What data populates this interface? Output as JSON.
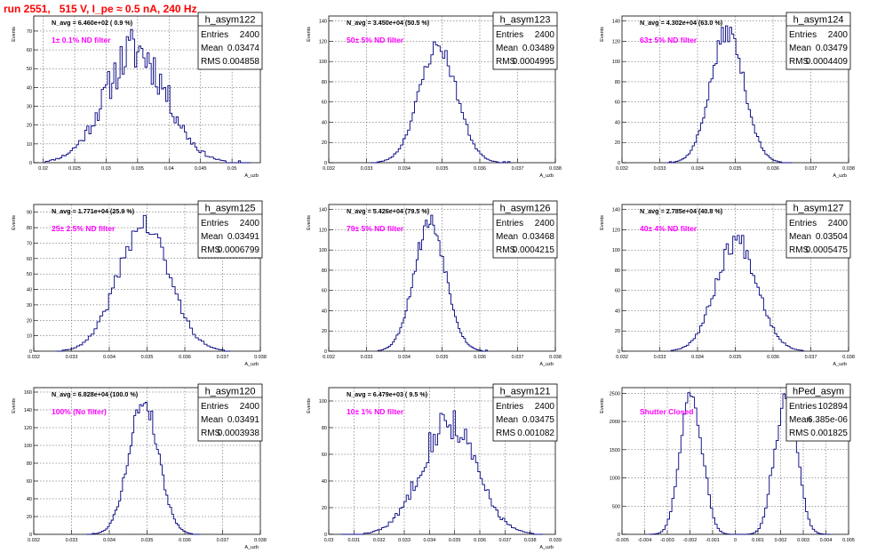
{
  "page": {
    "title": "run 2551,   515 V, I_pe ≈ 0.5 nA, 240 Hz",
    "colors": {
      "title": "#ff0000",
      "histogram": "#000080",
      "annotation": "#ff00ff"
    }
  },
  "chart_data": [
    {
      "type": "histogram",
      "name": "h_asym122",
      "navg": "N_avg = 6.460e+02 ( 0.9 %)",
      "filter": "1± 0.1% ND filter",
      "stats": {
        "entries": "2400",
        "mean": "0.03474",
        "rms": "0.004858"
      },
      "xlabel": "A_uzb",
      "ylabel": "Events",
      "xlim": [
        0.0185,
        0.0545
      ],
      "ylim": [
        0,
        78
      ],
      "xticks": [
        0.02,
        0.025,
        0.03,
        0.035,
        0.04,
        0.045,
        0.05
      ],
      "yticks": [
        0,
        10,
        20,
        30,
        40,
        50,
        60,
        70
      ],
      "gen": {
        "kind": "gauss",
        "mean": 0.03474,
        "sigma": 0.004858,
        "peak": 60,
        "noise": 0.22,
        "range": [
          0.02,
          0.053
        ],
        "bins": 100,
        "seed": 11
      }
    },
    {
      "type": "histogram",
      "name": "h_asym123",
      "navg": "N_avg = 3.450e+04 (50.5 %)",
      "filter": "50± 5% ND filter",
      "stats": {
        "entries": "2400",
        "mean": "0.03489",
        "rms": "0.0004995"
      },
      "xlabel": "A_uzb",
      "ylabel": "Events",
      "xlim": [
        0.032,
        0.038
      ],
      "ylim": [
        0,
        145
      ],
      "xticks": [
        0.032,
        0.033,
        0.034,
        0.035,
        0.036,
        0.037,
        0.038
      ],
      "yticks": [
        0,
        20,
        40,
        60,
        80,
        100,
        120,
        140
      ],
      "gen": {
        "kind": "gauss",
        "mean": 0.03489,
        "sigma": 0.0004995,
        "peak": 115,
        "noise": 0.08,
        "range": [
          0.0331,
          0.0368
        ],
        "bins": 60,
        "seed": 23
      }
    },
    {
      "type": "histogram",
      "name": "h_asym124",
      "navg": "N_avg = 4.302e+04 (63.0 %)",
      "filter": "63± 5% ND filter",
      "stats": {
        "entries": "2400",
        "mean": "0.03479",
        "rms": "0.0004409"
      },
      "xlabel": "A_uzb",
      "ylabel": "Events",
      "xlim": [
        0.032,
        0.038
      ],
      "ylim": [
        0,
        145
      ],
      "xticks": [
        0.032,
        0.033,
        0.034,
        0.035,
        0.036,
        0.037,
        0.038
      ],
      "yticks": [
        0,
        20,
        40,
        60,
        80,
        100,
        120,
        140
      ],
      "gen": {
        "kind": "gauss",
        "mean": 0.03479,
        "sigma": 0.0004409,
        "peak": 130,
        "noise": 0.08,
        "range": [
          0.0332,
          0.0365
        ],
        "bins": 60,
        "seed": 37
      }
    },
    {
      "type": "histogram",
      "name": "h_asym125",
      "navg": "N_avg = 1.771e+04 (25.9 %)",
      "filter": "25± 2.5% ND filter",
      "stats": {
        "entries": "2400",
        "mean": "0.03491",
        "rms": "0.0006799"
      },
      "xlabel": "A_uzb",
      "ylabel": "Events",
      "xlim": [
        0.032,
        0.038
      ],
      "ylim": [
        0,
        95
      ],
      "xticks": [
        0.032,
        0.033,
        0.034,
        0.035,
        0.036,
        0.037,
        0.038
      ],
      "yticks": [
        0,
        10,
        20,
        30,
        40,
        50,
        60,
        70,
        80,
        90
      ],
      "gen": {
        "kind": "gauss",
        "mean": 0.03491,
        "sigma": 0.0006799,
        "peak": 82,
        "noise": 0.1,
        "range": [
          0.0326,
          0.0372
        ],
        "bins": 60,
        "seed": 41
      }
    },
    {
      "type": "histogram",
      "name": "h_asym126",
      "navg": "N_avg = 5.426e+04 (79.5 %)",
      "filter": "79± 5% ND filter",
      "stats": {
        "entries": "2400",
        "mean": "0.03468",
        "rms": "0.0004215"
      },
      "xlabel": "A_uzb",
      "ylabel": "Events",
      "xlim": [
        0.032,
        0.038
      ],
      "ylim": [
        0,
        145
      ],
      "xticks": [
        0.032,
        0.033,
        0.034,
        0.035,
        0.036,
        0.037,
        0.038
      ],
      "yticks": [
        0,
        20,
        40,
        60,
        80,
        100,
        120,
        140
      ],
      "gen": {
        "kind": "gauss",
        "mean": 0.03468,
        "sigma": 0.0004215,
        "peak": 128,
        "noise": 0.08,
        "range": [
          0.0333,
          0.0362
        ],
        "bins": 60,
        "seed": 53
      }
    },
    {
      "type": "histogram",
      "name": "h_asym127",
      "navg": "N_avg = 2.785e+04 (40.8 %)",
      "filter": "40± 4% ND filter",
      "stats": {
        "entries": "2400",
        "mean": "0.03504",
        "rms": "0.0005475"
      },
      "xlabel": "A_uzb",
      "ylabel": "Events",
      "xlim": [
        0.032,
        0.038
      ],
      "ylim": [
        0,
        145
      ],
      "xticks": [
        0.032,
        0.033,
        0.034,
        0.035,
        0.036,
        0.037,
        0.038
      ],
      "yticks": [
        0,
        20,
        40,
        60,
        80,
        100,
        120,
        140
      ],
      "gen": {
        "kind": "gauss",
        "mean": 0.03504,
        "sigma": 0.0005475,
        "peak": 110,
        "noise": 0.1,
        "range": [
          0.0333,
          0.0368
        ],
        "bins": 60,
        "seed": 67
      }
    },
    {
      "type": "histogram",
      "name": "h_asym120",
      "navg": "N_avg = 6.828e+04 (100.0 %)",
      "filter": "100% (No filter)",
      "stats": {
        "entries": "2400",
        "mean": "0.03491",
        "rms": "0.0003938"
      },
      "xlabel": "A_uzb",
      "ylabel": "Events",
      "xlim": [
        0.032,
        0.038
      ],
      "ylim": [
        0,
        165
      ],
      "xticks": [
        0.032,
        0.033,
        0.034,
        0.035,
        0.036,
        0.037,
        0.038
      ],
      "yticks": [
        0,
        20,
        40,
        60,
        80,
        100,
        120,
        140,
        160
      ],
      "gen": {
        "kind": "gauss",
        "mean": 0.03491,
        "sigma": 0.0003938,
        "peak": 150,
        "noise": 0.08,
        "range": [
          0.0334,
          0.0364
        ],
        "bins": 60,
        "seed": 79
      }
    },
    {
      "type": "histogram",
      "name": "h_asym121",
      "navg": "N_avg = 6.479e+03 ( 9.5 %)",
      "filter": "10± 1% ND filter",
      "stats": {
        "entries": "2400",
        "mean": "0.03475",
        "rms": "0.001082"
      },
      "xlabel": "A_uzb",
      "ylabel": "Events",
      "xlim": [
        0.03,
        0.039
      ],
      "ylim": [
        0,
        110
      ],
      "xticks": [
        0.03,
        0.031,
        0.032,
        0.033,
        0.034,
        0.035,
        0.036,
        0.037,
        0.038,
        0.039
      ],
      "yticks": [
        0,
        20,
        40,
        60,
        80,
        100
      ],
      "gen": {
        "kind": "gauss",
        "mean": 0.03475,
        "sigma": 0.001082,
        "peak": 85,
        "noise": 0.16,
        "range": [
          0.0305,
          0.0385
        ],
        "bins": 90,
        "seed": 83
      }
    },
    {
      "type": "histogram",
      "name": "hPed_asym",
      "navg": "",
      "filter": "Shutter Closed",
      "stats": {
        "entries": "102894",
        "mean": "6.385e-06",
        "rms": "0.001825"
      },
      "xlabel": "",
      "ylabel": "Events",
      "xlim": [
        -0.005,
        0.005
      ],
      "ylim": [
        0,
        2600
      ],
      "xticks": [
        -0.005,
        -0.004,
        -0.003,
        -0.002,
        -0.001,
        0,
        0.001,
        0.002,
        0.003,
        0.004,
        0.005
      ],
      "yticks": [
        0,
        500,
        1000,
        1500,
        2000,
        2500
      ],
      "gen": {
        "kind": "bimodal",
        "mean": -0.002,
        "mean2": 0.0023,
        "sigma": 0.00045,
        "peak": 2300,
        "noise": 0.04,
        "floor": 900,
        "range": [
          -0.0038,
          0.0042
        ],
        "bins": 80,
        "seed": 97
      }
    }
  ]
}
